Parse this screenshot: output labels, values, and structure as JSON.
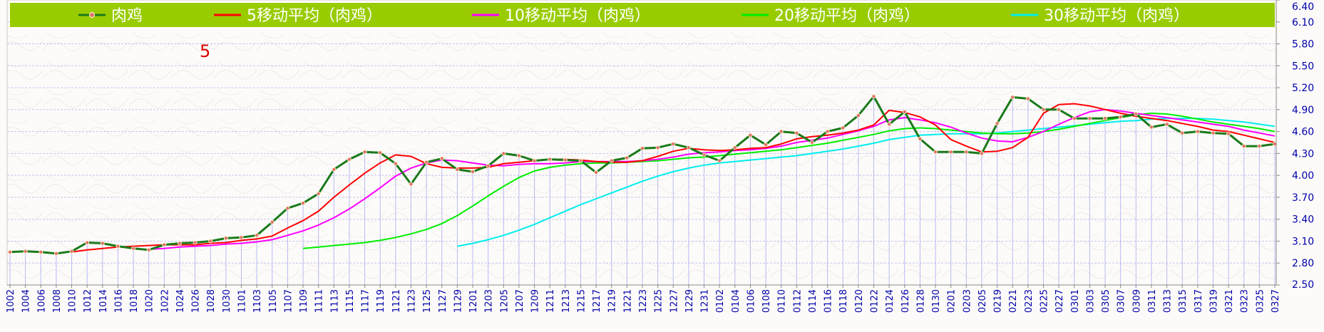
{
  "chart_data": {
    "type": "line",
    "title": "",
    "xlabel": "",
    "ylabel": "",
    "ylim": [
      2.5,
      6.4
    ],
    "yticks": [
      "6.40",
      "6.10",
      "5.80",
      "5.50",
      "5.20",
      "4.90",
      "4.60",
      "4.30",
      "4.00",
      "3.70",
      "3.40",
      "3.10",
      "2.80",
      "2.50"
    ],
    "grid": true,
    "legend_position": "top",
    "annotation": "5",
    "colors": {
      "legend_bar": "#99cc00",
      "price": "#1a7a1a",
      "price_marker": "#e07070",
      "ma5": "#ff0000",
      "ma10": "#ff00ff",
      "ma20": "#00ee00",
      "ma30": "#00eeee",
      "bars": "#b8b8f5",
      "axis_text": "#0000aa",
      "annotation": "#dd0000"
    },
    "x": [
      "1002",
      "1004",
      "1006",
      "1008",
      "1010",
      "1012",
      "1014",
      "1016",
      "1018",
      "1020",
      "1022",
      "1024",
      "1026",
      "1028",
      "1030",
      "1101",
      "1103",
      "1105",
      "1107",
      "1109",
      "1111",
      "1113",
      "1115",
      "1117",
      "1119",
      "1121",
      "1123",
      "1125",
      "1127",
      "1129",
      "1201",
      "1203",
      "1205",
      "1207",
      "1209",
      "1211",
      "1213",
      "1215",
      "1217",
      "1219",
      "1221",
      "1223",
      "1225",
      "1227",
      "1229",
      "1231",
      "0102",
      "0104",
      "0106",
      "0108",
      "0110",
      "0112",
      "0114",
      "0116",
      "0118",
      "0120",
      "0122",
      "0124",
      "0126",
      "0128",
      "0130",
      "0201",
      "0203",
      "0205",
      "0219",
      "0221",
      "0223",
      "0225",
      "0227",
      "0301",
      "0303",
      "0305",
      "0307",
      "0309",
      "0311",
      "0313",
      "0315",
      "0317",
      "0319",
      "0321",
      "0323",
      "0325",
      "0327"
    ],
    "series": [
      {
        "name": "肉鸡",
        "values": [
          2.95,
          2.96,
          2.95,
          2.93,
          2.96,
          3.08,
          3.07,
          3.03,
          3.0,
          2.98,
          3.05,
          3.07,
          3.08,
          3.1,
          3.14,
          3.15,
          3.18,
          3.36,
          3.55,
          3.62,
          3.75,
          4.08,
          4.22,
          4.32,
          4.31,
          4.16,
          3.88,
          4.18,
          4.23,
          4.08,
          4.05,
          4.13,
          4.3,
          4.27,
          4.2,
          4.22,
          4.21,
          4.2,
          4.04,
          4.2,
          4.24,
          4.37,
          4.38,
          4.43,
          4.38,
          4.28,
          4.2,
          4.38,
          4.55,
          4.42,
          4.6,
          4.58,
          4.45,
          4.6,
          4.65,
          4.82,
          5.08,
          4.7,
          4.87,
          4.5,
          4.32,
          4.32,
          4.32,
          4.3,
          4.71,
          5.07,
          5.05,
          4.9,
          4.9,
          4.78,
          4.78,
          4.78,
          4.8,
          4.84,
          4.66,
          4.7,
          4.58,
          4.6,
          4.58,
          4.57,
          4.4,
          4.4,
          4.43
        ]
      },
      {
        "name": "5移动平均（肉鸡）",
        "values": [
          null,
          null,
          null,
          null,
          2.95,
          2.98,
          3.0,
          3.02,
          3.03,
          3.04,
          3.05,
          3.05,
          3.05,
          3.07,
          3.08,
          3.11,
          3.13,
          3.17,
          3.28,
          3.38,
          3.51,
          3.7,
          3.87,
          4.03,
          4.17,
          4.28,
          4.26,
          4.16,
          4.11,
          4.1,
          4.1,
          4.11,
          4.16,
          4.18,
          4.2,
          4.22,
          4.22,
          4.21,
          4.19,
          4.18,
          4.18,
          4.2,
          4.26,
          4.33,
          4.37,
          4.35,
          4.34,
          4.35,
          4.37,
          4.38,
          4.43,
          4.5,
          4.53,
          4.55,
          4.58,
          4.62,
          4.69,
          4.89,
          4.86,
          4.8,
          4.69,
          4.49,
          4.4,
          4.32,
          4.33,
          4.38,
          4.52,
          4.85,
          4.97,
          4.98,
          4.95,
          4.9,
          4.85,
          4.81,
          4.78,
          4.75,
          4.71,
          4.67,
          4.62,
          4.6,
          4.55,
          4.5,
          4.45
        ]
      },
      {
        "name": "10移动平均（肉鸡）",
        "values": [
          null,
          null,
          null,
          null,
          null,
          null,
          null,
          null,
          null,
          2.99,
          3.0,
          3.02,
          3.03,
          3.04,
          3.06,
          3.07,
          3.09,
          3.12,
          3.18,
          3.24,
          3.32,
          3.42,
          3.54,
          3.68,
          3.83,
          3.99,
          4.1,
          4.17,
          4.21,
          4.2,
          4.17,
          4.14,
          4.13,
          4.15,
          4.16,
          4.16,
          4.17,
          4.19,
          4.19,
          4.19,
          4.19,
          4.2,
          4.22,
          4.25,
          4.29,
          4.31,
          4.32,
          4.34,
          4.35,
          4.37,
          4.4,
          4.45,
          4.48,
          4.51,
          4.56,
          4.61,
          4.67,
          4.76,
          4.79,
          4.76,
          4.72,
          4.66,
          4.58,
          4.51,
          4.47,
          4.46,
          4.52,
          4.6,
          4.7,
          4.79,
          4.87,
          4.9,
          4.88,
          4.85,
          4.82,
          4.79,
          4.76,
          4.73,
          4.7,
          4.67,
          4.62,
          4.58,
          4.54
        ]
      },
      {
        "name": "20移动平均（肉鸡）",
        "values": [
          null,
          null,
          null,
          null,
          null,
          null,
          null,
          null,
          null,
          null,
          null,
          null,
          null,
          null,
          null,
          null,
          null,
          null,
          null,
          3.0,
          3.02,
          3.04,
          3.06,
          3.08,
          3.11,
          3.15,
          3.2,
          3.26,
          3.34,
          3.45,
          3.58,
          3.72,
          3.85,
          3.97,
          4.06,
          4.11,
          4.14,
          4.16,
          4.17,
          4.17,
          4.18,
          4.19,
          4.2,
          4.22,
          4.24,
          4.25,
          4.27,
          4.29,
          4.31,
          4.33,
          4.35,
          4.38,
          4.41,
          4.44,
          4.48,
          4.52,
          4.56,
          4.61,
          4.64,
          4.65,
          4.64,
          4.62,
          4.6,
          4.58,
          4.57,
          4.57,
          4.58,
          4.6,
          4.63,
          4.67,
          4.71,
          4.75,
          4.79,
          4.83,
          4.85,
          4.84,
          4.81,
          4.77,
          4.73,
          4.7,
          4.67,
          4.64,
          4.6
        ]
      },
      {
        "name": "30移动平均（肉鸡）",
        "values": [
          null,
          null,
          null,
          null,
          null,
          null,
          null,
          null,
          null,
          null,
          null,
          null,
          null,
          null,
          null,
          null,
          null,
          null,
          null,
          null,
          null,
          null,
          null,
          null,
          null,
          null,
          null,
          null,
          null,
          3.03,
          3.07,
          3.12,
          3.18,
          3.25,
          3.33,
          3.42,
          3.51,
          3.6,
          3.68,
          3.76,
          3.84,
          3.92,
          3.99,
          4.05,
          4.1,
          4.14,
          4.17,
          4.19,
          4.21,
          4.23,
          4.25,
          4.27,
          4.3,
          4.33,
          4.36,
          4.4,
          4.44,
          4.49,
          4.52,
          4.55,
          4.56,
          4.57,
          4.57,
          4.57,
          4.58,
          4.6,
          4.62,
          4.64,
          4.66,
          4.68,
          4.7,
          4.72,
          4.74,
          4.75,
          4.77,
          4.78,
          4.78,
          4.78,
          4.77,
          4.75,
          4.73,
          4.7,
          4.67
        ]
      }
    ]
  }
}
